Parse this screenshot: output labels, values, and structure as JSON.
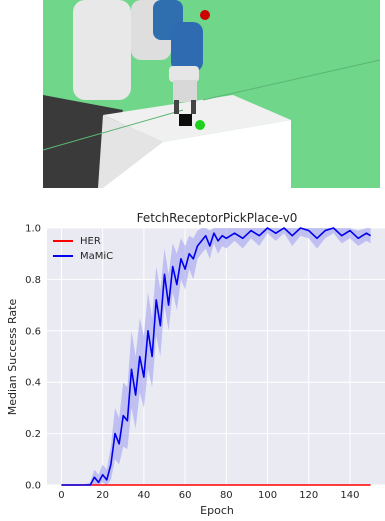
{
  "scene": {
    "type": "robot-simulation-render",
    "objects": [
      "robot-arm",
      "table",
      "black-cube",
      "green-target-sphere",
      "red-target-sphere"
    ]
  },
  "chart_data": {
    "type": "line",
    "title": "FetchReceptorPickPlace-v0",
    "xlabel": "Epoch",
    "ylabel": "Median Success Rate",
    "xlim": [
      -7,
      157
    ],
    "ylim": [
      0,
      1.0
    ],
    "xticks": [
      0,
      20,
      40,
      60,
      80,
      100,
      120,
      140
    ],
    "yticks": [
      0.0,
      0.2,
      0.4,
      0.6,
      0.8,
      1.0
    ],
    "ytick_labels": [
      "0.0",
      "0.2",
      "0.4",
      "0.6",
      "0.8",
      "1.0"
    ],
    "grid": true,
    "legend_position": "upper left",
    "series": [
      {
        "name": "HER",
        "color": "#ff0000",
        "x": [
          0,
          150
        ],
        "y": [
          0,
          0
        ]
      },
      {
        "name": "MaMiC",
        "color": "#0000ee",
        "band_color": "#9a9af2",
        "x": [
          0,
          5,
          10,
          14,
          16,
          18,
          20,
          22,
          24,
          26,
          28,
          30,
          32,
          34,
          36,
          38,
          40,
          42,
          44,
          46,
          48,
          50,
          52,
          54,
          56,
          58,
          60,
          62,
          64,
          66,
          68,
          70,
          72,
          74,
          76,
          78,
          80,
          84,
          88,
          92,
          96,
          100,
          104,
          108,
          112,
          116,
          120,
          124,
          128,
          132,
          136,
          140,
          144,
          148,
          150
        ],
        "y": [
          0,
          0,
          0,
          0,
          0.03,
          0.01,
          0.04,
          0.02,
          0.08,
          0.2,
          0.16,
          0.27,
          0.25,
          0.45,
          0.35,
          0.5,
          0.42,
          0.6,
          0.5,
          0.72,
          0.62,
          0.82,
          0.7,
          0.85,
          0.78,
          0.88,
          0.84,
          0.9,
          0.88,
          0.93,
          0.95,
          0.97,
          0.93,
          0.98,
          0.95,
          0.97,
          0.96,
          0.98,
          0.96,
          0.99,
          0.97,
          1.0,
          0.98,
          1.0,
          0.97,
          1.0,
          0.99,
          0.96,
          0.99,
          1.0,
          0.97,
          0.99,
          0.96,
          0.98,
          0.97
        ],
        "lower": [
          0,
          0,
          0,
          0,
          0,
          0,
          0.01,
          0,
          0.02,
          0.1,
          0.08,
          0.15,
          0.14,
          0.3,
          0.22,
          0.36,
          0.3,
          0.45,
          0.38,
          0.58,
          0.5,
          0.7,
          0.6,
          0.75,
          0.68,
          0.8,
          0.76,
          0.84,
          0.8,
          0.88,
          0.9,
          0.92,
          0.88,
          0.94,
          0.9,
          0.93,
          0.92,
          0.95,
          0.92,
          0.96,
          0.93,
          0.98,
          0.95,
          0.98,
          0.93,
          0.97,
          0.96,
          0.92,
          0.96,
          0.98,
          0.94,
          0.96,
          0.93,
          0.95,
          0.94
        ],
        "upper": [
          0,
          0,
          0,
          0.01,
          0.06,
          0.04,
          0.08,
          0.06,
          0.15,
          0.3,
          0.26,
          0.4,
          0.38,
          0.6,
          0.5,
          0.65,
          0.58,
          0.75,
          0.65,
          0.85,
          0.76,
          0.92,
          0.82,
          0.94,
          0.9,
          0.96,
          0.93,
          0.97,
          0.96,
          0.99,
          1.0,
          1.0,
          0.99,
          1.0,
          1.0,
          1.0,
          1.0,
          1.0,
          1.0,
          1.0,
          1.0,
          1.0,
          1.0,
          1.0,
          1.0,
          1.0,
          1.0,
          1.0,
          1.0,
          1.0,
          1.0,
          1.0,
          0.99,
          1.0,
          1.0
        ]
      }
    ]
  }
}
